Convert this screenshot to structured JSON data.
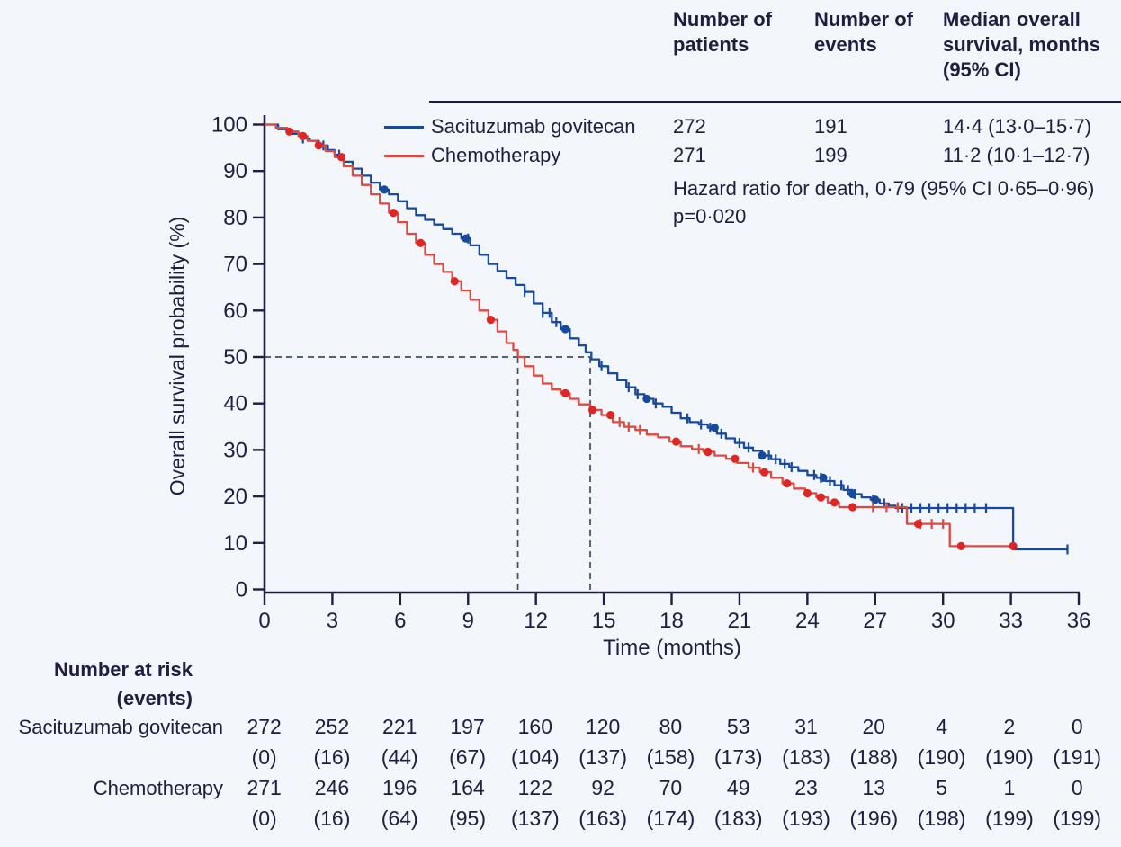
{
  "colors": {
    "text": "#201d40",
    "blue": "#17499d",
    "red": "#dd4a41",
    "red_marker": "#e02525",
    "dashed": "#3e4a6e",
    "axis": "#201d40",
    "background": "#f3f6fa"
  },
  "summary": {
    "col_headers": [
      "Number of\npatients",
      "Number of\nevents",
      "Median overall\nsurvival, months\n(95% CI)"
    ],
    "rows": [
      {
        "label": "Sacituzumab govitecan",
        "patients": "272",
        "events": "191",
        "median": "14·4 (13·0–15·7)"
      },
      {
        "label": "Chemotherapy",
        "patients": "271",
        "events": "199",
        "median": "11·2 (10·1–12·7)"
      }
    ],
    "hazard_text": "Hazard ratio for death, 0·79 (95% CI 0·65–0·96)",
    "p_text": "p=0·020"
  },
  "chart_data": {
    "type": "line",
    "subtype": "kaplan-meier",
    "title": "",
    "xlabel": "Time (months)",
    "ylabel": "Overall survival probability (%)",
    "xlim": [
      0,
      36
    ],
    "ylim": [
      0,
      100
    ],
    "x_ticks": [
      0,
      3,
      6,
      9,
      12,
      15,
      18,
      21,
      24,
      27,
      30,
      33,
      36
    ],
    "y_ticks": [
      0,
      10,
      20,
      30,
      40,
      50,
      60,
      70,
      80,
      90,
      100
    ],
    "grid": false,
    "legend_position": "top-left-inside",
    "median_guides": {
      "y": 50,
      "x_values": [
        11.2,
        14.4
      ]
    },
    "series": [
      {
        "name": "Sacituzumab govitecan",
        "color": "#17499d",
        "points": [
          [
            0,
            100
          ],
          [
            0.6,
            99
          ],
          [
            1.1,
            98
          ],
          [
            1.6,
            97
          ],
          [
            2.0,
            96.5
          ],
          [
            2.4,
            95.5
          ],
          [
            2.8,
            94.5
          ],
          [
            3.1,
            93.5
          ],
          [
            3.5,
            92
          ],
          [
            3.9,
            90.5
          ],
          [
            4.3,
            89
          ],
          [
            4.7,
            87.5
          ],
          [
            5.1,
            86
          ],
          [
            5.5,
            85
          ],
          [
            5.9,
            83.5
          ],
          [
            6.3,
            82
          ],
          [
            6.7,
            80.5
          ],
          [
            7.1,
            79.5
          ],
          [
            7.5,
            78.5
          ],
          [
            7.9,
            77.5
          ],
          [
            8.3,
            76.5
          ],
          [
            8.7,
            75.5
          ],
          [
            9.1,
            74
          ],
          [
            9.5,
            72
          ],
          [
            9.9,
            70
          ],
          [
            10.3,
            68.5
          ],
          [
            10.7,
            67
          ],
          [
            11.1,
            65.5
          ],
          [
            11.5,
            64
          ],
          [
            11.9,
            61.5
          ],
          [
            12.3,
            59.5
          ],
          [
            12.7,
            57.5
          ],
          [
            13.1,
            56
          ],
          [
            13.5,
            54
          ],
          [
            13.9,
            52.5
          ],
          [
            14.2,
            51
          ],
          [
            14.45,
            49.5
          ],
          [
            14.8,
            48
          ],
          [
            15.2,
            46.5
          ],
          [
            15.6,
            45
          ],
          [
            16.0,
            43.5
          ],
          [
            16.4,
            42
          ],
          [
            16.8,
            41
          ],
          [
            17.2,
            40
          ],
          [
            17.6,
            39.3
          ],
          [
            18.0,
            38
          ],
          [
            18.4,
            36.8
          ],
          [
            18.8,
            36
          ],
          [
            19.2,
            35.5
          ],
          [
            19.6,
            34.8
          ],
          [
            20.0,
            33.5
          ],
          [
            20.4,
            32.5
          ],
          [
            20.8,
            31.5
          ],
          [
            21.2,
            30.5
          ],
          [
            21.6,
            29.8
          ],
          [
            22.0,
            28.8
          ],
          [
            22.4,
            28
          ],
          [
            22.8,
            27
          ],
          [
            23.2,
            26.3
          ],
          [
            23.6,
            25.5
          ],
          [
            24.0,
            24.6
          ],
          [
            24.4,
            24
          ],
          [
            24.8,
            23.3
          ],
          [
            25.2,
            22.4
          ],
          [
            25.6,
            21.4
          ],
          [
            26.0,
            20.5
          ],
          [
            26.4,
            19.8
          ],
          [
            26.8,
            19.3
          ],
          [
            27.2,
            18.5
          ],
          [
            27.6,
            18
          ],
          [
            27.9,
            17.5
          ],
          [
            33.1,
            17.5
          ],
          [
            33.1,
            8.6
          ],
          [
            35.5,
            8.6
          ]
        ],
        "censor_ticks": [
          1.7,
          2.6,
          3.3,
          9.0,
          11.5,
          12.3,
          12.6,
          12.9,
          14.9,
          16.1,
          16.5,
          17.3,
          18.7,
          19.3,
          19.7,
          20.2,
          21.0,
          21.4,
          22.3,
          22.6,
          23.0,
          23.3,
          24.3,
          24.6,
          25.0,
          25.5,
          25.8,
          26.1,
          26.9,
          27.4,
          28.2,
          28.6,
          29.0,
          29.4,
          29.8,
          30.2,
          30.6,
          31.0,
          31.4,
          31.9,
          35.5
        ],
        "dots": [
          5.3,
          8.9,
          13.3,
          16.9,
          19.9,
          22.0,
          24.7,
          26.0,
          27.0
        ]
      },
      {
        "name": "Chemotherapy",
        "color": "#dd4a41",
        "points": [
          [
            0,
            100
          ],
          [
            0.5,
            99.3
          ],
          [
            1.0,
            98.5
          ],
          [
            1.5,
            97.5
          ],
          [
            1.9,
            96.5
          ],
          [
            2.3,
            95.5
          ],
          [
            2.7,
            94.3
          ],
          [
            3.1,
            93
          ],
          [
            3.5,
            91
          ],
          [
            3.9,
            89
          ],
          [
            4.3,
            87
          ],
          [
            4.7,
            85
          ],
          [
            5.1,
            83
          ],
          [
            5.5,
            81
          ],
          [
            5.9,
            79
          ],
          [
            6.3,
            76.5
          ],
          [
            6.7,
            74.5
          ],
          [
            7.1,
            72
          ],
          [
            7.5,
            70
          ],
          [
            7.9,
            68.3
          ],
          [
            8.3,
            66.3
          ],
          [
            8.7,
            64.3
          ],
          [
            9.1,
            62.3
          ],
          [
            9.5,
            60
          ],
          [
            9.9,
            58
          ],
          [
            10.3,
            55.5
          ],
          [
            10.7,
            53
          ],
          [
            11.0,
            51.5
          ],
          [
            11.2,
            50
          ],
          [
            11.5,
            48
          ],
          [
            11.9,
            46
          ],
          [
            12.3,
            44.3
          ],
          [
            12.7,
            43
          ],
          [
            13.1,
            42.2
          ],
          [
            13.5,
            41
          ],
          [
            13.9,
            39.8
          ],
          [
            14.4,
            38.6
          ],
          [
            14.9,
            37.5
          ],
          [
            15.4,
            36
          ],
          [
            15.9,
            35
          ],
          [
            16.4,
            34.3
          ],
          [
            16.9,
            33.3
          ],
          [
            17.4,
            32.7
          ],
          [
            17.9,
            31.8
          ],
          [
            18.4,
            30.8
          ],
          [
            18.9,
            30.2
          ],
          [
            19.4,
            29.6
          ],
          [
            19.9,
            28.8
          ],
          [
            20.4,
            28.1
          ],
          [
            20.9,
            27.2
          ],
          [
            21.4,
            26.2
          ],
          [
            21.9,
            25.2
          ],
          [
            22.4,
            24
          ],
          [
            22.9,
            22.8
          ],
          [
            23.4,
            21.7
          ],
          [
            23.9,
            20.7
          ],
          [
            24.4,
            19.8
          ],
          [
            24.9,
            18.7
          ],
          [
            25.4,
            17.7
          ],
          [
            28.3,
            17.7
          ],
          [
            28.4,
            14.1
          ],
          [
            30.2,
            14.1
          ],
          [
            30.3,
            9.3
          ],
          [
            33.1,
            9.3
          ]
        ],
        "censor_ticks": [
          15.7,
          16.1,
          16.6,
          19.2,
          21.6,
          26.9,
          27.5,
          28.0,
          29.0,
          29.5,
          30.0
        ],
        "dots": [
          1.1,
          1.7,
          2.4,
          3.4,
          5.7,
          6.9,
          8.4,
          10.0,
          13.3,
          14.5,
          15.3,
          18.2,
          19.6,
          20.8,
          22.1,
          23.1,
          24.0,
          24.6,
          25.2,
          26.0,
          28.9,
          30.8,
          33.1
        ]
      }
    ]
  },
  "risk_table": {
    "title": "Number at risk",
    "subtitle": "(events)",
    "time_points": [
      0,
      3,
      6,
      9,
      12,
      15,
      18,
      21,
      24,
      27,
      30,
      33,
      36
    ],
    "rows": [
      {
        "label": "Sacituzumab govitecan",
        "at_risk": [
          "272",
          "252",
          "221",
          "197",
          "160",
          "120",
          "80",
          "53",
          "31",
          "20",
          "4",
          "2",
          "0"
        ],
        "events": [
          "(0)",
          "(16)",
          "(44)",
          "(67)",
          "(104)",
          "(137)",
          "(158)",
          "(173)",
          "(183)",
          "(188)",
          "(190)",
          "(190)",
          "(191)"
        ]
      },
      {
        "label": "Chemotherapy",
        "at_risk": [
          "271",
          "246",
          "196",
          "164",
          "122",
          "92",
          "70",
          "49",
          "23",
          "13",
          "5",
          "1",
          "0"
        ],
        "events": [
          "(0)",
          "(16)",
          "(64)",
          "(95)",
          "(137)",
          "(163)",
          "(174)",
          "(183)",
          "(193)",
          "(196)",
          "(198)",
          "(199)",
          "(199)"
        ]
      }
    ]
  }
}
